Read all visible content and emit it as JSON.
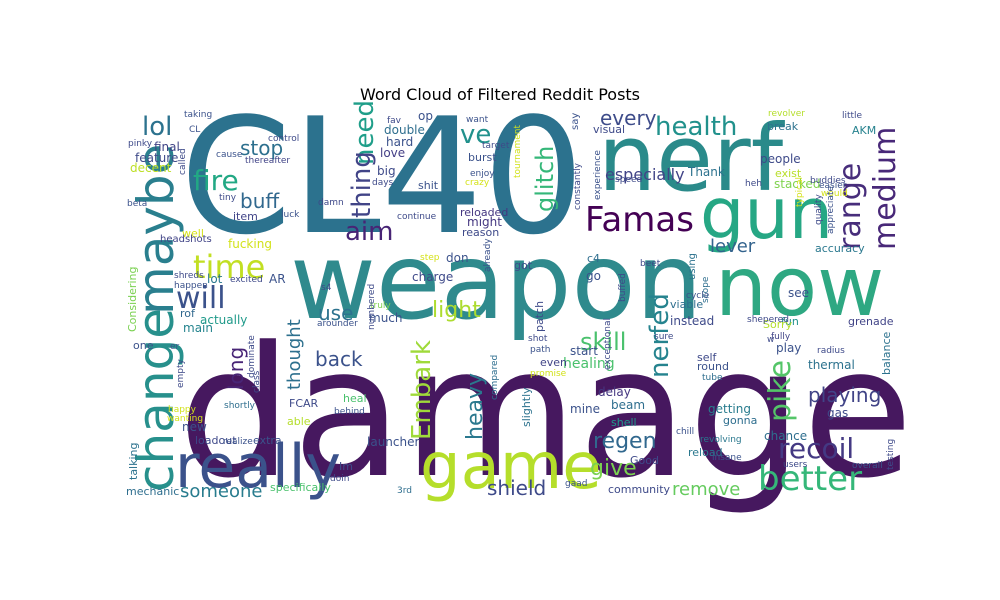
{
  "title": "Word Cloud of Filtered Reddit Posts",
  "words": [
    {
      "text": "damage",
      "color": "#46185f"
    },
    {
      "text": "CL40",
      "color": "#2c728e"
    },
    {
      "text": "weapon",
      "color": "#2f8a8d"
    },
    {
      "text": "nerf",
      "color": "#2a8a8a"
    },
    {
      "text": "now",
      "color": "#2ea882"
    },
    {
      "text": "gun",
      "color": "#26a784"
    },
    {
      "text": "game",
      "color": "#b5de2b"
    },
    {
      "text": "really",
      "color": "#3b528b"
    },
    {
      "text": "maybe",
      "color": "#2a7f8e"
    },
    {
      "text": "change",
      "color": "#27908c"
    },
    {
      "text": "Famas",
      "color": "#440154"
    },
    {
      "text": "time",
      "color": "#c2df23"
    },
    {
      "text": "will",
      "color": "#3b528b"
    },
    {
      "text": "better",
      "color": "#35b779"
    },
    {
      "text": "recoil",
      "color": "#443983"
    },
    {
      "text": "range",
      "color": "#472d7b"
    },
    {
      "text": "medium",
      "color": "#482878"
    },
    {
      "text": "health",
      "color": "#21918c"
    },
    {
      "text": "fire",
      "color": "#22a884"
    },
    {
      "text": "lol",
      "color": "#2c728e"
    },
    {
      "text": "need",
      "color": "#1f9e89"
    },
    {
      "text": "ve",
      "color": "#21918c"
    },
    {
      "text": "glitch",
      "color": "#35b779"
    },
    {
      "text": "thing",
      "color": "#414487"
    },
    {
      "text": "aim",
      "color": "#482475"
    },
    {
      "text": "Embark",
      "color": "#9fda3a"
    },
    {
      "text": "nerfed",
      "color": "#25838e"
    },
    {
      "text": "pike",
      "color": "#54c568"
    },
    {
      "text": "skill",
      "color": "#4ac16d"
    },
    {
      "text": "light",
      "color": "#addc30"
    },
    {
      "text": "heavy",
      "color": "#2a788e"
    },
    {
      "text": "give",
      "color": "#7ad151"
    },
    {
      "text": "regen",
      "color": "#31688e"
    },
    {
      "text": "shield",
      "color": "#3e4a89"
    },
    {
      "text": "someone",
      "color": "#287c8e"
    },
    {
      "text": "remove",
      "color": "#65cb5e"
    },
    {
      "text": "playing",
      "color": "#414487"
    },
    {
      "text": "stop",
      "color": "#2d708e"
    },
    {
      "text": "buff",
      "color": "#31688e"
    },
    {
      "text": "every",
      "color": "#3e4c8a"
    },
    {
      "text": "lever",
      "color": "#33638d"
    },
    {
      "text": "back",
      "color": "#3b528b"
    },
    {
      "text": "use",
      "color": "#2c728e"
    },
    {
      "text": "long",
      "color": "#482576"
    },
    {
      "text": "thought",
      "color": "#2d708e"
    },
    {
      "text": "especially",
      "color": "#414487"
    },
    {
      "text": "accuracy",
      "color": "#2a788e"
    },
    {
      "text": "people",
      "color": "#3e4a89"
    },
    {
      "text": "Thank",
      "color": "#2c728e"
    },
    {
      "text": "exist",
      "color": "#b8de29"
    },
    {
      "text": "stacked",
      "color": "#7fd34e"
    },
    {
      "text": "feature",
      "color": "#3e4a89"
    },
    {
      "text": "final",
      "color": "#414487"
    },
    {
      "text": "decent",
      "color": "#bddf26"
    },
    {
      "text": "love",
      "color": "#433e85"
    },
    {
      "text": "hard",
      "color": "#3b528b"
    },
    {
      "text": "double",
      "color": "#2e6e8e"
    },
    {
      "text": "big",
      "color": "#3e4a89"
    },
    {
      "text": "item",
      "color": "#404387"
    },
    {
      "text": "fucking",
      "color": "#d2e21b"
    },
    {
      "text": "well",
      "color": "#d5e21a"
    },
    {
      "text": "headshots",
      "color": "#414487"
    },
    {
      "text": "Considering",
      "color": "#7ad151"
    },
    {
      "text": "actually",
      "color": "#1f9a8a"
    },
    {
      "text": "main",
      "color": "#25848e"
    },
    {
      "text": "rof",
      "color": "#31688e"
    },
    {
      "text": "lot",
      "color": "#2a788e"
    },
    {
      "text": "AR",
      "color": "#3b528b"
    },
    {
      "text": "charge",
      "color": "#3e4989"
    },
    {
      "text": "don",
      "color": "#3b528b"
    },
    {
      "text": "got",
      "color": "#3e4a89"
    },
    {
      "text": "c4",
      "color": "#2e6e8e"
    },
    {
      "text": "go",
      "color": "#3b528b"
    },
    {
      "text": "might",
      "color": "#453781"
    },
    {
      "text": "reason",
      "color": "#3e4989"
    },
    {
      "text": "reloaded",
      "color": "#453781"
    },
    {
      "text": "continue",
      "color": "#3e4a89"
    },
    {
      "text": "much",
      "color": "#3b528b"
    },
    {
      "text": "truly",
      "color": "#7fd34e"
    },
    {
      "text": "patch",
      "color": "#3e4a89"
    },
    {
      "text": "start",
      "color": "#3b528b"
    },
    {
      "text": "healing",
      "color": "#4ac16d"
    },
    {
      "text": "even",
      "color": "#414487"
    },
    {
      "text": "delay",
      "color": "#453781"
    },
    {
      "text": "mine",
      "color": "#3b528b"
    },
    {
      "text": "beam",
      "color": "#2e6e8e"
    },
    {
      "text": "shell",
      "color": "#1f9a8a"
    },
    {
      "text": "Good",
      "color": "#3e4989"
    },
    {
      "text": "community",
      "color": "#3e4a89"
    },
    {
      "text": "reload",
      "color": "#2a788e"
    },
    {
      "text": "round",
      "color": "#3b528b"
    },
    {
      "text": "self",
      "color": "#3e4989"
    },
    {
      "text": "tube",
      "color": "#2e6e8e"
    },
    {
      "text": "getting",
      "color": "#287c8e"
    },
    {
      "text": "gonna",
      "color": "#2e6e8e"
    },
    {
      "text": "chance",
      "color": "#2e6e8e"
    },
    {
      "text": "revolving",
      "color": "#2a788e"
    },
    {
      "text": "insane",
      "color": "#3b528b"
    },
    {
      "text": "play",
      "color": "#3b528b"
    },
    {
      "text": "thermal",
      "color": "#2c728e"
    },
    {
      "text": "gas",
      "color": "#3e4a89"
    },
    {
      "text": "grenade",
      "color": "#414487"
    },
    {
      "text": "fun",
      "color": "#21918c"
    },
    {
      "text": "Sorry",
      "color": "#b5de2b"
    },
    {
      "text": "instead",
      "color": "#3e4a89"
    },
    {
      "text": "see",
      "color": "#3b528b"
    },
    {
      "text": "balance",
      "color": "#2c728e"
    },
    {
      "text": "radius",
      "color": "#3e4a89"
    },
    {
      "text": "launcher",
      "color": "#3b528b"
    },
    {
      "text": "extra",
      "color": "#3b528b"
    },
    {
      "text": "loadout",
      "color": "#3e4989"
    },
    {
      "text": "new",
      "color": "#3b528b"
    },
    {
      "text": "one",
      "color": "#3b528b"
    },
    {
      "text": "talking",
      "color": "#2c728e"
    },
    {
      "text": "mechanic",
      "color": "#2e6e8e"
    },
    {
      "text": "specifically",
      "color": "#4ac16d"
    },
    {
      "text": "Im",
      "color": "#3e4a89"
    },
    {
      "text": "3rd",
      "color": "#2e6e8e"
    },
    {
      "text": "viable",
      "color": "#2e6e8e"
    },
    {
      "text": "using",
      "color": "#2c728e"
    },
    {
      "text": "scope",
      "color": "#2e6e8e"
    },
    {
      "text": "cycle",
      "color": "#3b528b"
    },
    {
      "text": "buffed",
      "color": "#3e4989"
    },
    {
      "text": "beet",
      "color": "#3e4a89"
    },
    {
      "text": "sure",
      "color": "#3e4a89"
    },
    {
      "text": "fully",
      "color": "#414487"
    },
    {
      "text": "AKM",
      "color": "#26828e"
    },
    {
      "text": "revolver",
      "color": "#b5de2b"
    },
    {
      "text": "little",
      "color": "#3e4a89"
    },
    {
      "text": "break",
      "color": "#2c728e"
    },
    {
      "text": "easier",
      "color": "#3b528b"
    },
    {
      "text": "buddies",
      "color": "#3e4989"
    },
    {
      "text": "would",
      "color": "#d2e21b"
    },
    {
      "text": "visual",
      "color": "#3e4a89"
    },
    {
      "text": "enjoy",
      "color": "#3b528b"
    },
    {
      "text": "burst",
      "color": "#3b528b"
    },
    {
      "text": "crazy",
      "color": "#d5e21a"
    },
    {
      "text": "target",
      "color": "#3e4a89"
    },
    {
      "text": "want",
      "color": "#3b528b"
    },
    {
      "text": "op",
      "color": "#3b528b"
    },
    {
      "text": "fav",
      "color": "#3e4989"
    },
    {
      "text": "speed",
      "color": "#3e4a89"
    },
    {
      "text": "say",
      "color": "#3b528b"
    },
    {
      "text": "taking",
      "color": "#3b528b"
    },
    {
      "text": "control",
      "color": "#3e4a89"
    },
    {
      "text": "cause",
      "color": "#3b528b"
    },
    {
      "text": "thereafter",
      "color": "#414487"
    },
    {
      "text": "pinky",
      "color": "#3e4a89"
    },
    {
      "text": "CL",
      "color": "#3b528b"
    },
    {
      "text": "days",
      "color": "#3e4a89"
    },
    {
      "text": "shit",
      "color": "#3b528b"
    },
    {
      "text": "damn",
      "color": "#3e4989"
    },
    {
      "text": "tiny",
      "color": "#3e4a89"
    },
    {
      "text": "luck",
      "color": "#3b528b"
    },
    {
      "text": "called",
      "color": "#3e4a89"
    },
    {
      "text": "beta",
      "color": "#3b528b"
    },
    {
      "text": "shreds",
      "color": "#3e4a89"
    },
    {
      "text": "happen",
      "color": "#3b528b"
    },
    {
      "text": "excited",
      "color": "#3e4989"
    },
    {
      "text": "dominate",
      "color": "#3e4a89"
    },
    {
      "text": "arounder",
      "color": "#3b528b"
    },
    {
      "text": "heal",
      "color": "#4ac16d"
    },
    {
      "text": "behind",
      "color": "#3b528b"
    },
    {
      "text": "FCAR",
      "color": "#3e4a89"
    },
    {
      "text": "able",
      "color": "#b5de2b"
    },
    {
      "text": "shortly",
      "color": "#2e6e8e"
    },
    {
      "text": "happy",
      "color": "#d2e21b"
    },
    {
      "text": "wanting",
      "color": "#d5e21a"
    },
    {
      "text": "realize",
      "color": "#3b528b"
    },
    {
      "text": "empty",
      "color": "#3e4a89"
    },
    {
      "text": "class",
      "color": "#3e4a89"
    },
    {
      "text": "compared",
      "color": "#2e6e8e"
    },
    {
      "text": "slightly",
      "color": "#2c728e"
    },
    {
      "text": "shot",
      "color": "#3e4a89"
    },
    {
      "text": "path",
      "color": "#3b528b"
    },
    {
      "text": "promise",
      "color": "#d2e21b"
    },
    {
      "text": "exceptional",
      "color": "#3e4a89"
    },
    {
      "text": "chill",
      "color": "#3b528b"
    },
    {
      "text": "users",
      "color": "#3e4a89"
    },
    {
      "text": "overall",
      "color": "#3b528b"
    },
    {
      "text": "testing",
      "color": "#3e4a89"
    },
    {
      "text": "doin",
      "color": "#3e4a89"
    },
    {
      "text": "gaad",
      "color": "#3b528b"
    },
    {
      "text": "numbered",
      "color": "#3e4a89"
    },
    {
      "text": "already",
      "color": "#3b528b"
    },
    {
      "text": "step",
      "color": "#d5e21a"
    },
    {
      "text": "tournament",
      "color": "#d2e21b"
    },
    {
      "text": "constantly",
      "color": "#3e4a89"
    },
    {
      "text": "experience",
      "color": "#3b528b"
    },
    {
      "text": "heh",
      "color": "#3e4a89"
    },
    {
      "text": "typical",
      "color": "#d5e21a"
    },
    {
      "text": "quality",
      "color": "#3e4a89"
    },
    {
      "text": "appreciate",
      "color": "#3b528b"
    },
    {
      "text": "shepered",
      "color": "#3e4989"
    },
    {
      "text": "w",
      "color": "#3e4a89"
    },
    {
      "text": "er",
      "color": "#3b528b"
    },
    {
      "text": "s4",
      "color": "#3e4a89"
    }
  ]
}
